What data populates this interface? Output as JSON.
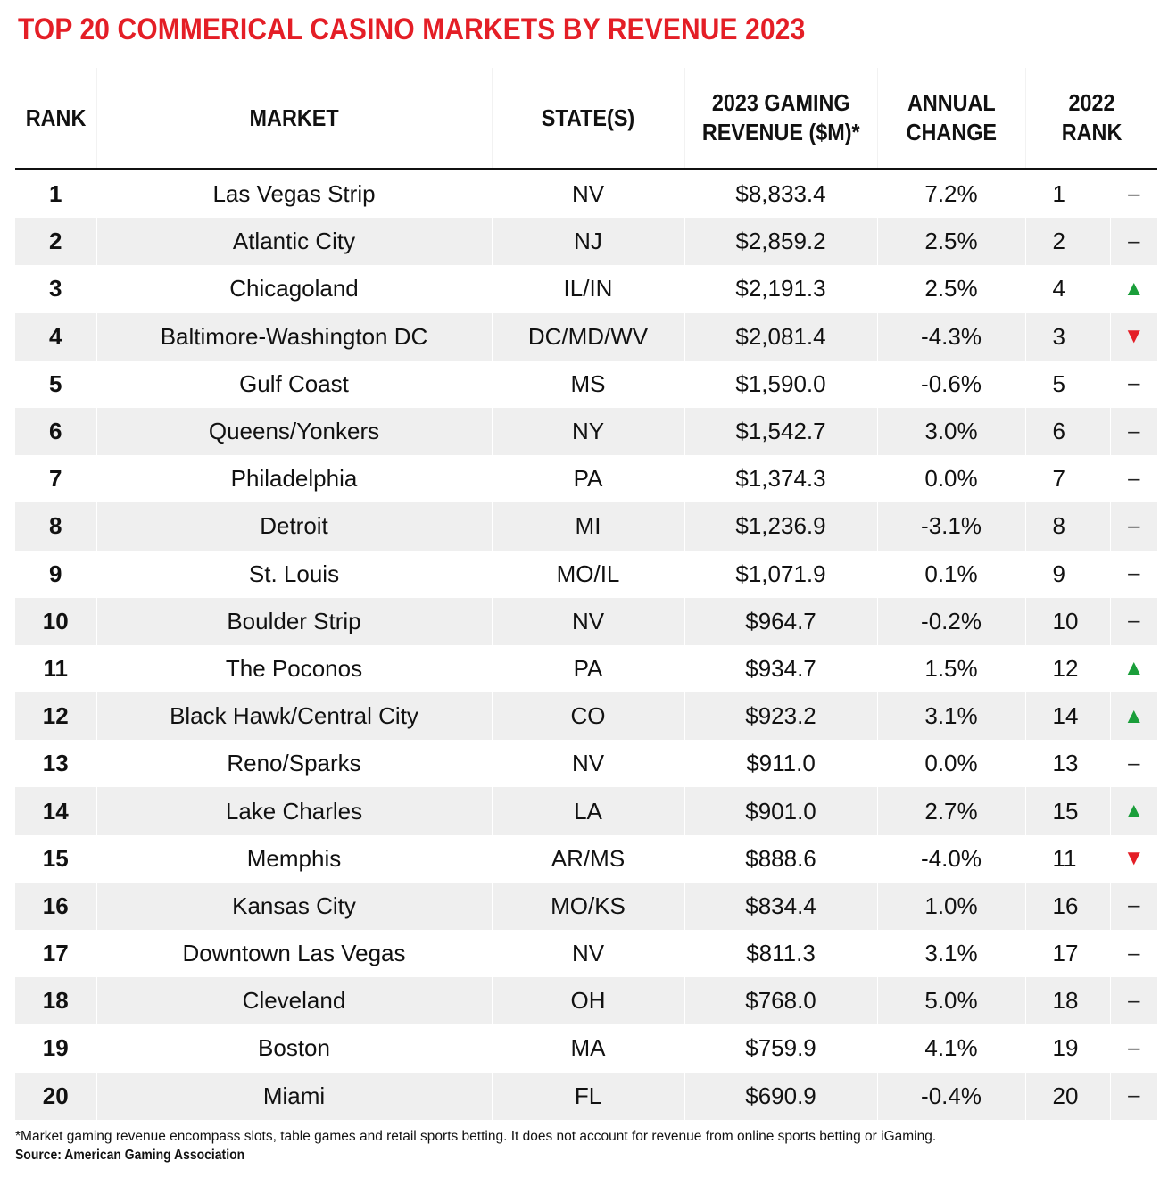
{
  "title": "TOP 20 COMMERICAL CASINO MARKETS BY REVENUE 2023",
  "footnote": "*Market gaming revenue encompass slots, table games and retail sports betting. It does not account for revenue from online sports betting or iGaming.",
  "source": "Source: American Gaming Association",
  "colors": {
    "title": "#e41e26",
    "up": "#1a9e3a",
    "down": "#e41e26",
    "stripe": "#efefef"
  },
  "chart_data": {
    "type": "table",
    "title": "TOP 20 COMMERICAL CASINO MARKETS BY REVENUE 2023",
    "columns": [
      [
        "RANK"
      ],
      [
        "MARKET"
      ],
      [
        "STATE(S)"
      ],
      [
        "2023 GAMING",
        "REVENUE ($M)*"
      ],
      [
        "ANNUAL",
        "CHANGE"
      ],
      [
        "2022",
        "RANK"
      ]
    ],
    "rows": [
      {
        "rank": "1",
        "market": "Las Vegas Strip",
        "states": "NV",
        "revenue": "$8,833.4",
        "change": "7.2%",
        "rank_2022": "1",
        "movement": "same"
      },
      {
        "rank": "2",
        "market": "Atlantic City",
        "states": "NJ",
        "revenue": "$2,859.2",
        "change": "2.5%",
        "rank_2022": "2",
        "movement": "same"
      },
      {
        "rank": "3",
        "market": "Chicagoland",
        "states": "IL/IN",
        "revenue": "$2,191.3",
        "change": "2.5%",
        "rank_2022": "4",
        "movement": "up"
      },
      {
        "rank": "4",
        "market": "Baltimore-Washington DC",
        "states": "DC/MD/WV",
        "revenue": "$2,081.4",
        "change": "-4.3%",
        "rank_2022": "3",
        "movement": "down"
      },
      {
        "rank": "5",
        "market": "Gulf Coast",
        "states": "MS",
        "revenue": "$1,590.0",
        "change": "-0.6%",
        "rank_2022": "5",
        "movement": "same"
      },
      {
        "rank": "6",
        "market": "Queens/Yonkers",
        "states": "NY",
        "revenue": "$1,542.7",
        "change": "3.0%",
        "rank_2022": "6",
        "movement": "same"
      },
      {
        "rank": "7",
        "market": "Philadelphia",
        "states": "PA",
        "revenue": "$1,374.3",
        "change": "0.0%",
        "rank_2022": "7",
        "movement": "same"
      },
      {
        "rank": "8",
        "market": "Detroit",
        "states": "MI",
        "revenue": "$1,236.9",
        "change": "-3.1%",
        "rank_2022": "8",
        "movement": "same"
      },
      {
        "rank": "9",
        "market": "St. Louis",
        "states": "MO/IL",
        "revenue": "$1,071.9",
        "change": "0.1%",
        "rank_2022": "9",
        "movement": "same"
      },
      {
        "rank": "10",
        "market": "Boulder Strip",
        "states": "NV",
        "revenue": "$964.7",
        "change": "-0.2%",
        "rank_2022": "10",
        "movement": "same"
      },
      {
        "rank": "11",
        "market": "The Poconos",
        "states": "PA",
        "revenue": "$934.7",
        "change": "1.5%",
        "rank_2022": "12",
        "movement": "up"
      },
      {
        "rank": "12",
        "market": "Black Hawk/Central City",
        "states": "CO",
        "revenue": "$923.2",
        "change": "3.1%",
        "rank_2022": "14",
        "movement": "up"
      },
      {
        "rank": "13",
        "market": "Reno/Sparks",
        "states": "NV",
        "revenue": "$911.0",
        "change": "0.0%",
        "rank_2022": "13",
        "movement": "same"
      },
      {
        "rank": "14",
        "market": "Lake Charles",
        "states": "LA",
        "revenue": "$901.0",
        "change": "2.7%",
        "rank_2022": "15",
        "movement": "up"
      },
      {
        "rank": "15",
        "market": "Memphis",
        "states": "AR/MS",
        "revenue": "$888.6",
        "change": "-4.0%",
        "rank_2022": "11",
        "movement": "down"
      },
      {
        "rank": "16",
        "market": "Kansas City",
        "states": "MO/KS",
        "revenue": "$834.4",
        "change": "1.0%",
        "rank_2022": "16",
        "movement": "same"
      },
      {
        "rank": "17",
        "market": "Downtown Las Vegas",
        "states": "NV",
        "revenue": "$811.3",
        "change": "3.1%",
        "rank_2022": "17",
        "movement": "same"
      },
      {
        "rank": "18",
        "market": "Cleveland",
        "states": "OH",
        "revenue": "$768.0",
        "change": "5.0%",
        "rank_2022": "18",
        "movement": "same"
      },
      {
        "rank": "19",
        "market": "Boston",
        "states": "MA",
        "revenue": "$759.9",
        "change": "4.1%",
        "rank_2022": "19",
        "movement": "same"
      },
      {
        "rank": "20",
        "market": "Miami",
        "states": "FL",
        "revenue": "$690.9",
        "change": "-0.4%",
        "rank_2022": "20",
        "movement": "same"
      }
    ],
    "movement_glyphs": {
      "up": "▲",
      "down": "▼",
      "same": "–"
    }
  }
}
